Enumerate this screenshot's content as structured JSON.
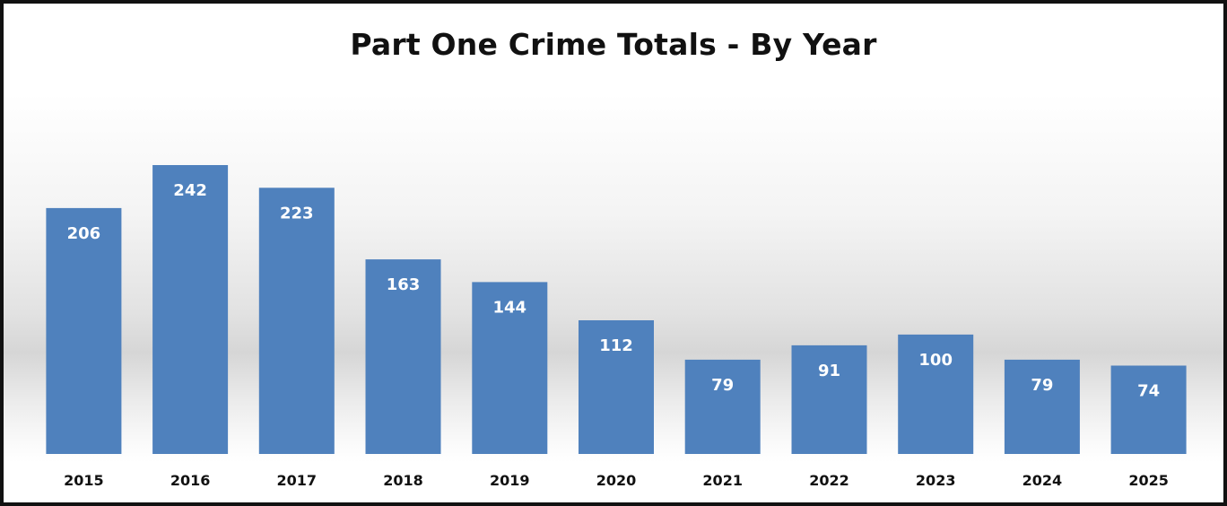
{
  "chart_data": {
    "type": "bar",
    "title": "Part One Crime Totals - By Year",
    "categories": [
      "2015",
      "2016",
      "2017",
      "2018",
      "2019",
      "2020",
      "2021",
      "2022",
      "2023",
      "2024",
      "2025"
    ],
    "values": [
      206,
      242,
      223,
      163,
      144,
      112,
      79,
      91,
      100,
      79,
      74
    ],
    "xlabel": "",
    "ylabel": "",
    "ylim": [
      0,
      242
    ],
    "grid": false,
    "legend": "none",
    "data_labels": "inside-end",
    "colors": {
      "bar": "#4f81bd",
      "label": "#ffffff",
      "text": "#111111"
    }
  }
}
